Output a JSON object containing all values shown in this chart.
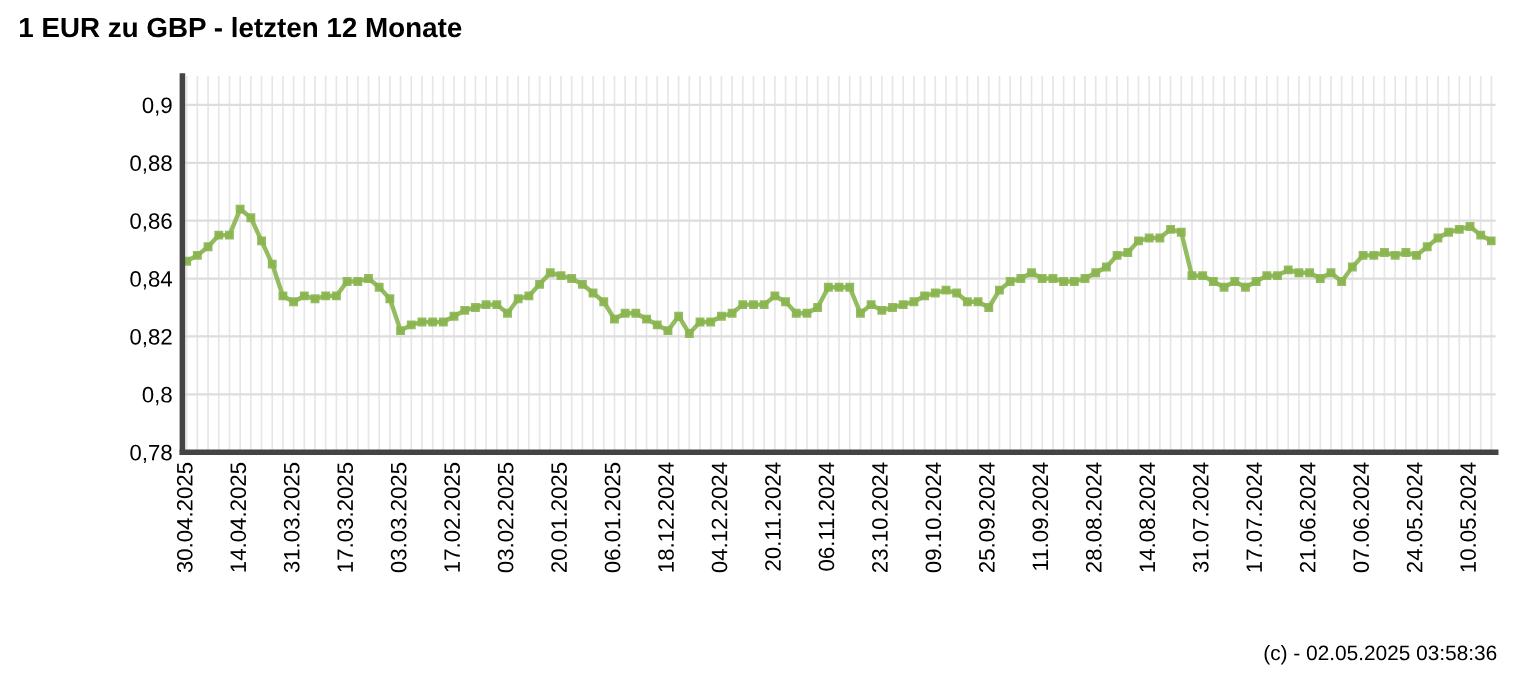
{
  "chart_data": {
    "type": "line",
    "title": "1 EUR zu GBP - letzten 12 Monate",
    "categories": [
      "30.04.2025",
      null,
      null,
      null,
      null,
      "14.04.2025",
      null,
      null,
      null,
      null,
      "31.03.2025",
      null,
      null,
      null,
      null,
      "17.03.2025",
      null,
      null,
      null,
      null,
      "03.03.2025",
      null,
      null,
      null,
      null,
      "17.02.2025",
      null,
      null,
      null,
      null,
      "03.02.2025",
      null,
      null,
      null,
      null,
      "20.01.2025",
      null,
      null,
      null,
      null,
      "06.01.2025",
      null,
      null,
      null,
      null,
      "18.12.2024",
      null,
      null,
      null,
      null,
      "04.12.2024",
      null,
      null,
      null,
      null,
      "20.11.2024",
      null,
      null,
      null,
      null,
      "06.11.2024",
      null,
      null,
      null,
      null,
      "23.10.2024",
      null,
      null,
      null,
      null,
      "09.10.2024",
      null,
      null,
      null,
      null,
      "25.09.2024",
      null,
      null,
      null,
      null,
      "11.09.2024",
      null,
      null,
      null,
      null,
      "28.08.2024",
      null,
      null,
      null,
      null,
      "14.08.2024",
      null,
      null,
      null,
      null,
      "31.07.2024",
      null,
      null,
      null,
      null,
      "17.07.2024",
      null,
      null,
      null,
      null,
      "21.06.2024",
      null,
      null,
      null,
      null,
      "07.06.2024",
      null,
      null,
      null,
      null,
      "24.05.2024",
      null,
      null,
      null,
      null,
      "10.05.2024",
      null,
      null
    ],
    "series": [
      {
        "color": "#8ab550",
        "values": [
          0.846,
          0.848,
          0.851,
          0.855,
          0.855,
          0.864,
          0.861,
          0.853,
          0.845,
          0.834,
          0.832,
          0.834,
          0.833,
          0.834,
          0.834,
          0.839,
          0.839,
          0.84,
          0.837,
          0.833,
          0.822,
          0.824,
          0.825,
          0.825,
          0.825,
          0.827,
          0.829,
          0.83,
          0.831,
          0.831,
          0.828,
          0.833,
          0.834,
          0.838,
          0.842,
          0.841,
          0.84,
          0.838,
          0.835,
          0.832,
          0.826,
          0.828,
          0.828,
          0.826,
          0.824,
          0.822,
          0.827,
          0.821,
          0.825,
          0.825,
          0.827,
          0.828,
          0.831,
          0.831,
          0.831,
          0.834,
          0.832,
          0.828,
          0.828,
          0.83,
          0.837,
          0.837,
          0.837,
          0.828,
          0.831,
          0.829,
          0.83,
          0.831,
          0.832,
          0.834,
          0.835,
          0.836,
          0.835,
          0.832,
          0.832,
          0.83,
          0.836,
          0.839,
          0.84,
          0.842,
          0.84,
          0.84,
          0.839,
          0.839,
          0.84,
          0.842,
          0.844,
          0.848,
          0.849,
          0.853,
          0.854,
          0.854,
          0.857,
          0.856,
          0.841,
          0.841,
          0.839,
          0.837,
          0.839,
          0.837,
          0.839,
          0.841,
          0.841,
          0.843,
          0.842,
          0.842,
          0.84,
          0.842,
          0.839,
          0.844,
          0.848,
          0.848,
          0.849,
          0.848,
          0.849,
          0.848,
          0.851,
          0.854,
          0.856,
          0.857,
          0.858,
          0.855,
          0.853
        ]
      }
    ],
    "ylim": [
      0.78,
      0.91
    ],
    "yticks": [
      {
        "value": 0.78,
        "label": "0,78"
      },
      {
        "value": 0.8,
        "label": "0,8"
      },
      {
        "value": 0.82,
        "label": "0,82"
      },
      {
        "value": 0.84,
        "label": "0,84"
      },
      {
        "value": 0.86,
        "label": "0,86"
      },
      {
        "value": 0.88,
        "label": "0,88"
      },
      {
        "value": 0.9,
        "label": "0,9"
      }
    ],
    "grid": true,
    "marker": "square",
    "line_style": "solid",
    "annotations": [
      "(c) - 02.05.2025 03:58:36"
    ]
  }
}
